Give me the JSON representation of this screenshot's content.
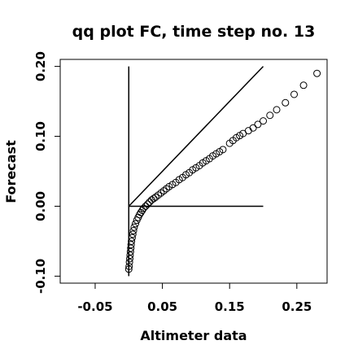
{
  "chart_data": {
    "type": "scatter",
    "title": "qq plot FC, time step no. 13",
    "xlabel": "Altimeter data",
    "ylabel": "Forecast",
    "xlim": [
      -0.102,
      0.295
    ],
    "ylim": [
      -0.11,
      0.21
    ],
    "x_ticks": [
      -0.05,
      0.05,
      0.15,
      0.25
    ],
    "x_tick_labels": [
      "-0.05",
      "0.05",
      "0.15",
      "0.25"
    ],
    "y_ticks": [
      -0.1,
      0.0,
      0.1,
      0.2
    ],
    "y_tick_labels": [
      "-0.10",
      "0.00",
      "0.10",
      "0.20"
    ],
    "grid": false,
    "legend": "none",
    "reference_lines": [
      {
        "x": [
          0,
          0.2
        ],
        "y": [
          0,
          0.2
        ]
      },
      {
        "x": [
          0,
          0
        ],
        "y": [
          -0.1,
          0.2
        ]
      },
      {
        "x": [
          0,
          0.2
        ],
        "y": [
          0,
          0
        ]
      }
    ],
    "points": [
      {
        "x": 0.0,
        "y": -0.09
      },
      {
        "x": 0.0005,
        "y": -0.086
      },
      {
        "x": 0.001,
        "y": -0.08
      },
      {
        "x": 0.0015,
        "y": -0.075
      },
      {
        "x": 0.002,
        "y": -0.07
      },
      {
        "x": 0.0025,
        "y": -0.065
      },
      {
        "x": 0.003,
        "y": -0.06
      },
      {
        "x": 0.0035,
        "y": -0.055
      },
      {
        "x": 0.004,
        "y": -0.05
      },
      {
        "x": 0.005,
        "y": -0.045
      },
      {
        "x": 0.006,
        "y": -0.04
      },
      {
        "x": 0.007,
        "y": -0.035
      },
      {
        "x": 0.008,
        "y": -0.03
      },
      {
        "x": 0.01,
        "y": -0.025
      },
      {
        "x": 0.012,
        "y": -0.02
      },
      {
        "x": 0.014,
        "y": -0.016
      },
      {
        "x": 0.016,
        "y": -0.012
      },
      {
        "x": 0.018,
        "y": -0.009
      },
      {
        "x": 0.02,
        "y": -0.006
      },
      {
        "x": 0.022,
        "y": -0.003
      },
      {
        "x": 0.025,
        "y": 0.0
      },
      {
        "x": 0.028,
        "y": 0.003
      },
      {
        "x": 0.031,
        "y": 0.006
      },
      {
        "x": 0.034,
        "y": 0.009
      },
      {
        "x": 0.037,
        "y": 0.011
      },
      {
        "x": 0.04,
        "y": 0.013
      },
      {
        "x": 0.044,
        "y": 0.016
      },
      {
        "x": 0.048,
        "y": 0.019
      },
      {
        "x": 0.052,
        "y": 0.022
      },
      {
        "x": 0.056,
        "y": 0.025
      },
      {
        "x": 0.06,
        "y": 0.028
      },
      {
        "x": 0.065,
        "y": 0.031
      },
      {
        "x": 0.07,
        "y": 0.034
      },
      {
        "x": 0.075,
        "y": 0.038
      },
      {
        "x": 0.08,
        "y": 0.041
      },
      {
        "x": 0.085,
        "y": 0.045
      },
      {
        "x": 0.09,
        "y": 0.048
      },
      {
        "x": 0.095,
        "y": 0.052
      },
      {
        "x": 0.1,
        "y": 0.055
      },
      {
        "x": 0.105,
        "y": 0.058
      },
      {
        "x": 0.11,
        "y": 0.062
      },
      {
        "x": 0.115,
        "y": 0.065
      },
      {
        "x": 0.12,
        "y": 0.068
      },
      {
        "x": 0.125,
        "y": 0.072
      },
      {
        "x": 0.13,
        "y": 0.075
      },
      {
        "x": 0.135,
        "y": 0.078
      },
      {
        "x": 0.14,
        "y": 0.081
      },
      {
        "x": 0.15,
        "y": 0.09
      },
      {
        "x": 0.155,
        "y": 0.094
      },
      {
        "x": 0.16,
        "y": 0.098
      },
      {
        "x": 0.165,
        "y": 0.101
      },
      {
        "x": 0.17,
        "y": 0.104
      },
      {
        "x": 0.178,
        "y": 0.108
      },
      {
        "x": 0.185,
        "y": 0.112
      },
      {
        "x": 0.192,
        "y": 0.117
      },
      {
        "x": 0.2,
        "y": 0.122
      },
      {
        "x": 0.21,
        "y": 0.13
      },
      {
        "x": 0.22,
        "y": 0.138
      },
      {
        "x": 0.233,
        "y": 0.148
      },
      {
        "x": 0.246,
        "y": 0.16
      },
      {
        "x": 0.26,
        "y": 0.173
      },
      {
        "x": 0.28,
        "y": 0.19
      }
    ]
  }
}
